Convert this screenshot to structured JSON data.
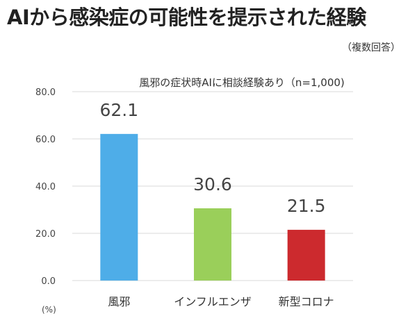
{
  "header": {
    "title": "AIから感染症の可能性を提示された経験",
    "note": "（複数回答）"
  },
  "chart_data": {
    "type": "bar",
    "title": "風邪の症状時AIに相談経験あり（n=1,000)",
    "categories": [
      "風邪",
      "インフルエンザ",
      "新型コロナ"
    ],
    "values": [
      62.1,
      30.6,
      21.5
    ],
    "value_labels": [
      "62.1",
      "30.6",
      "21.5"
    ],
    "colors": [
      "#4EADE8",
      "#9ACF5A",
      "#CC2A2E"
    ],
    "ylim": [
      0,
      80
    ],
    "yticks": [
      "0.0",
      "20.0",
      "40.0",
      "60.0",
      "80.0"
    ],
    "ylabel": "",
    "unit_label": "(%)",
    "grid": true,
    "gridline_color": "#D9D9D9",
    "legend": "none"
  }
}
